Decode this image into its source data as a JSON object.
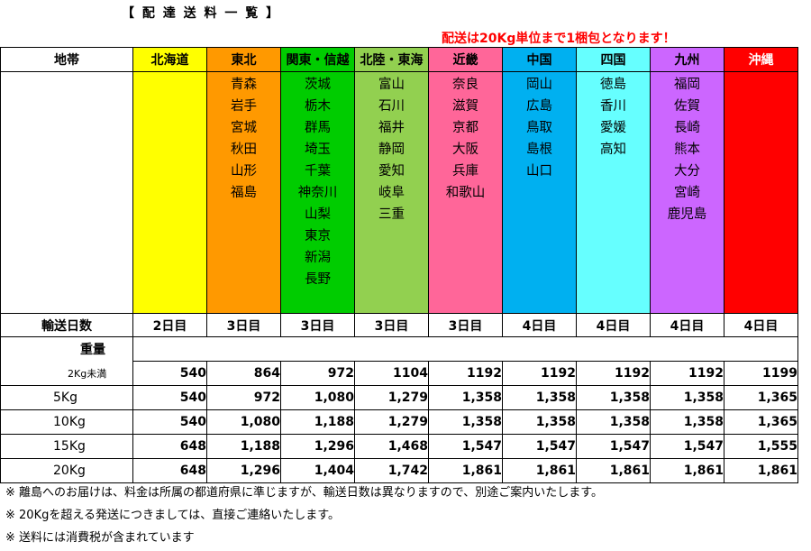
{
  "title": "【 配 達 送 料 一 覧 】",
  "notice": "配送は20Kg単位まで1梱包となります！",
  "header_label": "地帯",
  "regions": [
    {
      "name": "北海道",
      "color": "#ffff00",
      "prefectures": [],
      "days": "2日目"
    },
    {
      "name": "東北",
      "color": "#ff9900",
      "prefectures": [
        "青森",
        "岩手",
        "宮城",
        "秋田",
        "山形",
        "福島"
      ],
      "days": "3日目"
    },
    {
      "name": "関東・信越",
      "color": "#00cc00",
      "prefectures": [
        "茨城",
        "栃木",
        "群馬",
        "埼玉",
        "千葉",
        "神奈川",
        "山梨",
        "東京",
        "新潟",
        "長野"
      ],
      "days": "3日目"
    },
    {
      "name": "北陸・東海",
      "color": "#92d050",
      "prefectures": [
        "富山",
        "石川",
        "福井",
        "静岡",
        "愛知",
        "岐阜",
        "三重"
      ],
      "days": "3日目"
    },
    {
      "name": "近畿",
      "color": "#ff6699",
      "prefectures": [
        "奈良",
        "滋賀",
        "京都",
        "大阪",
        "兵庫",
        "和歌山"
      ],
      "days": "3日目"
    },
    {
      "name": "中国",
      "color": "#00b0f0",
      "prefectures": [
        "岡山",
        "広島",
        "鳥取",
        "島根",
        "山口"
      ],
      "days": "4日目"
    },
    {
      "name": "四国",
      "color": "#66ffff",
      "prefectures": [
        "徳島",
        "香川",
        "愛媛",
        "高知"
      ],
      "days": "4日目"
    },
    {
      "name": "九州",
      "color": "#cc66ff",
      "prefectures": [
        "福岡",
        "佐賀",
        "長崎",
        "熊本",
        "大分",
        "宮崎",
        "鹿児島"
      ],
      "days": "4日目"
    },
    {
      "name": "沖縄",
      "color": "#ff0000",
      "prefectures": [],
      "days": "4日目"
    }
  ],
  "days_label": "輸送日数",
  "weight_label": "重量",
  "weights": [
    {
      "label": "2Kg未満",
      "prices": [
        "540",
        "864",
        "972",
        "1104",
        "1192",
        "1192",
        "1192",
        "1192",
        "1199"
      ]
    },
    {
      "label": "5Kg",
      "prices": [
        "540",
        "972",
        "1,080",
        "1,279",
        "1,358",
        "1,358",
        "1,358",
        "1,358",
        "1,365"
      ]
    },
    {
      "label": "10Kg",
      "prices": [
        "540",
        "1,080",
        "1,188",
        "1,279",
        "1,358",
        "1,358",
        "1,358",
        "1,358",
        "1,365"
      ]
    },
    {
      "label": "15Kg",
      "prices": [
        "648",
        "1,188",
        "1,296",
        "1,468",
        "1,547",
        "1,547",
        "1,547",
        "1,547",
        "1,555"
      ]
    },
    {
      "label": "20Kg",
      "prices": [
        "648",
        "1,296",
        "1,404",
        "1,742",
        "1,861",
        "1,861",
        "1,861",
        "1,861",
        "1,861"
      ]
    }
  ],
  "notes": [
    "※ 離島へのお届けは、料金は所属の都道府県に準じますが、輸送日数は異なりますので、別途ご案内いたします。",
    "※ 20Kgを超える発送につきましては、直接ご連絡いたします。",
    "※ 送料には消費税が含まれています"
  ]
}
